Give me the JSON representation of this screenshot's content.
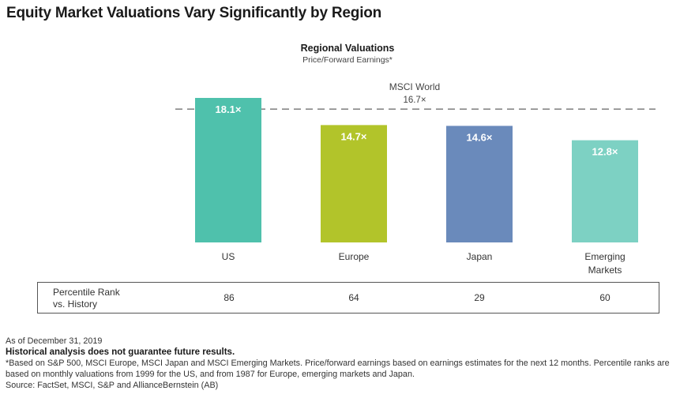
{
  "page": {
    "title": "Equity Market Valuations Vary Significantly by Region"
  },
  "chart_data": {
    "type": "bar",
    "title": "Regional Valuations",
    "subtitle": "Price/Forward Earnings*",
    "categories": [
      "US",
      "Europe",
      "Japan",
      "Emerging\nMarkets"
    ],
    "values": [
      18.1,
      14.7,
      14.6,
      12.8
    ],
    "data_labels": [
      "18.1×",
      "14.7×",
      "14.6×",
      "12.8×"
    ],
    "colors": [
      "#4fc1ac",
      "#b2c42a",
      "#6a8abb",
      "#7dd1c3"
    ],
    "ylim": [
      0,
      18.1
    ],
    "reference_line": {
      "label": "MSCI World",
      "value_label": "16.7×",
      "value": 16.7,
      "color": "#888888"
    }
  },
  "table": {
    "row_label": "Percentile Rank\nvs. History",
    "values": [
      "86",
      "64",
      "29",
      "60"
    ]
  },
  "notes": {
    "as_of": "As of December 31, 2019",
    "disclaimer": "Historical analysis does not guarantee future results.",
    "footnote": "*Based on S&P 500, MSCI Europe, MSCI Japan and MSCI Emerging Markets. Price/forward earnings based on earnings estimates for the next 12 months. Percentile ranks are based on monthly valuations from 1999 for the US, and from 1987 for Europe, emerging markets and Japan.",
    "source": "Source: FactSet, MSCI, S&P and AllianceBernstein (AB)"
  }
}
